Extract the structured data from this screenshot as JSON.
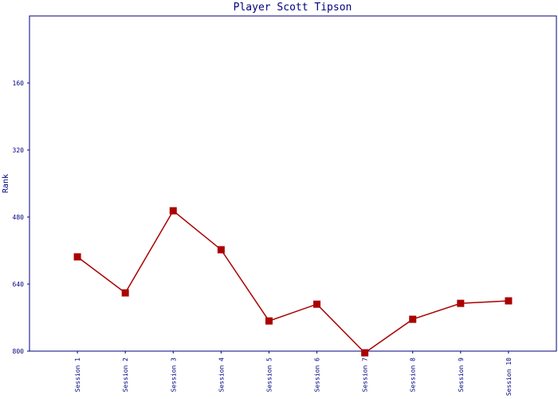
{
  "chart_data": {
    "type": "line",
    "title": "Player Scott Tipson",
    "y_label": "Rank",
    "categories": [
      "Session 1",
      "Session 2",
      "Session 3",
      "Session 4",
      "Session 5",
      "Session 6",
      "Session 7",
      "Session 8",
      "Session 9",
      "Session 10"
    ],
    "series": [
      {
        "name": "Rank",
        "color": "#aa0000",
        "values": [
          575,
          661,
          465,
          558,
          728,
          688,
          804,
          724,
          686,
          680
        ]
      }
    ],
    "ylim": [
      0,
      800
    ],
    "y_inverted": true,
    "yticks": [
      160,
      320,
      480,
      640,
      800
    ],
    "grid": false
  }
}
